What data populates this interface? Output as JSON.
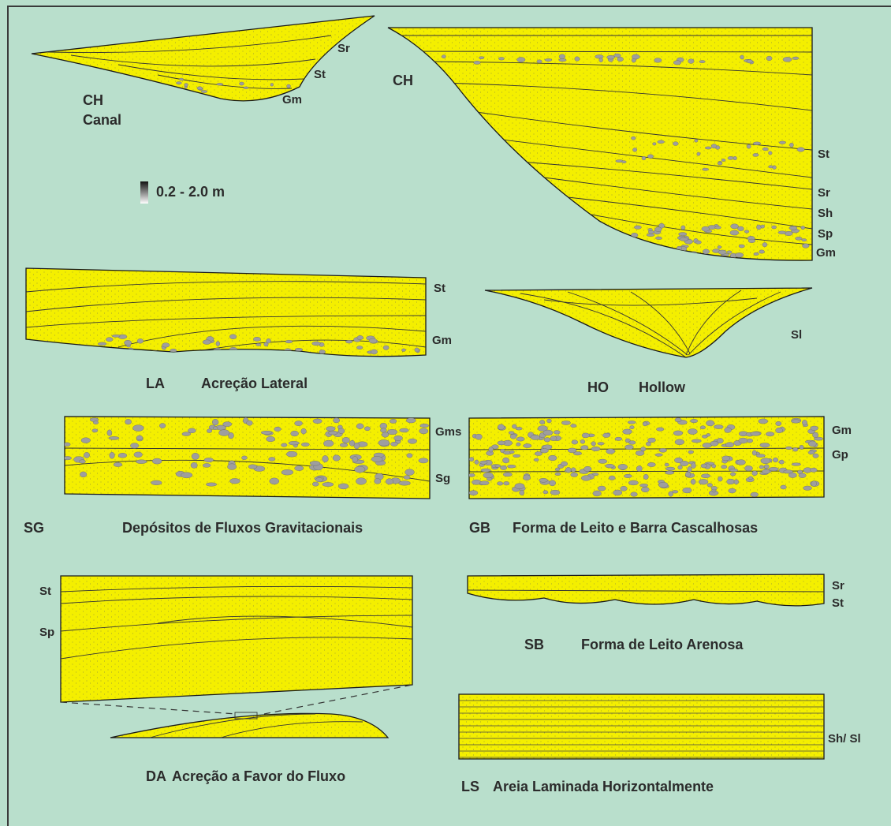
{
  "scale": "0.2 - 2.0 m",
  "elements": [
    {
      "code": "CH",
      "name": "Canal",
      "facies": [
        "Sr",
        "St",
        "Gm"
      ]
    },
    {
      "code": "CH",
      "facies": [
        "St",
        "Sr",
        "Sh",
        "Sp",
        "Gm"
      ]
    },
    {
      "code": "LA",
      "name": "Acreção Lateral",
      "facies": [
        "St",
        "Gm"
      ]
    },
    {
      "code": "HO",
      "name": "Hollow",
      "facies": [
        "Sl"
      ]
    },
    {
      "code": "SG",
      "name": "Depósitos de Fluxos Gravitacionais",
      "facies": [
        "Gms",
        "Sg"
      ]
    },
    {
      "code": "GB",
      "name": "Forma de Leito e Barra Cascalhosas",
      "facies": [
        "Gm",
        "Gp"
      ]
    },
    {
      "code": "DA",
      "name": "Acreção a Favor do Fluxo",
      "facies": [
        "St",
        "Sp"
      ]
    },
    {
      "code": "SB",
      "name": "Forma de Leito Arenosa",
      "facies": [
        "Sr",
        "St"
      ]
    },
    {
      "code": "LS",
      "name": "Areia Laminada Horizontalmente",
      "facies": [
        "Sh/ Sl"
      ]
    }
  ]
}
